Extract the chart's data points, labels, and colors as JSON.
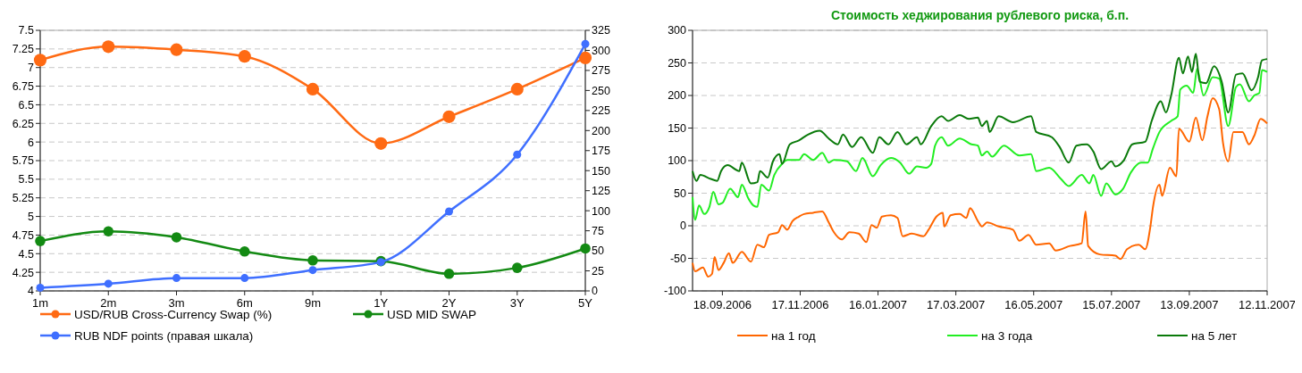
{
  "chart_data": [
    {
      "type": "line",
      "categories": [
        "1m",
        "2m",
        "3m",
        "6m",
        "9m",
        "1Y",
        "2Y",
        "3Y",
        "5Y"
      ],
      "series": [
        {
          "name": "USD/RUB Cross-Currency Swap (%)",
          "color": "#ff6a13",
          "values": [
            7.1,
            7.28,
            7.24,
            7.15,
            6.71,
            5.98,
            6.34,
            6.71,
            7.13
          ]
        },
        {
          "name": "USD MID SWAP",
          "color": "#138a13",
          "values": [
            4.67,
            4.8,
            4.72,
            4.53,
            4.41,
            4.4,
            4.23,
            4.31,
            4.57
          ]
        },
        {
          "name": "RUB NDF points (правая шкала)",
          "color": "#3f6fff",
          "axis": "y2",
          "values": [
            4,
            9,
            16,
            16,
            26,
            36,
            99,
            170,
            308
          ]
        }
      ],
      "ylim": [
        4,
        7.5
      ],
      "yticks": [
        4,
        4.25,
        4.5,
        4.75,
        5,
        5.25,
        5.5,
        5.75,
        6,
        6.25,
        6.5,
        6.75,
        7,
        7.25,
        7.5
      ],
      "y2lim": [
        0,
        325
      ],
      "y2ticks": [
        0,
        25,
        50,
        75,
        100,
        125,
        150,
        175,
        200,
        225,
        250,
        275,
        300,
        325
      ],
      "grid": "y",
      "legend": "bottom",
      "marker": "circle",
      "line_style": "solid"
    },
    {
      "type": "line",
      "title": "Стоимость хеджирования рублевого риска, б.п.",
      "series": [
        {
          "name": "на 1 год",
          "color": "#ff6600",
          "x": [
            "2006-08-26",
            "2006-08-28",
            "2006-09-03",
            "2006-09-07",
            "2006-09-10",
            "2006-09-12",
            "2006-09-15",
            "2006-09-19",
            "2006-09-23",
            "2006-09-26",
            "2006-10-03",
            "2006-10-10",
            "2006-10-15",
            "2006-10-20",
            "2006-10-24",
            "2006-10-31",
            "2006-11-03",
            "2006-11-07",
            "2006-11-11",
            "2006-11-16",
            "2006-11-20",
            "2006-11-27",
            "2006-12-04",
            "2006-12-09",
            "2006-12-13",
            "2006-12-19",
            "2006-12-25",
            "2007-01-01",
            "2007-01-07",
            "2007-01-11",
            "2007-01-15",
            "2007-01-19",
            "2007-01-26",
            "2007-01-31",
            "2007-02-04",
            "2007-02-11",
            "2007-02-20",
            "2007-02-24",
            "2007-03-02",
            "2007-03-07",
            "2007-03-08",
            "2007-03-13",
            "2007-03-20",
            "2007-03-25",
            "2007-03-28",
            "2007-04-03",
            "2007-04-06",
            "2007-04-10",
            "2007-04-19",
            "2007-04-30",
            "2007-05-05",
            "2007-05-12",
            "2007-05-18",
            "2007-05-28",
            "2007-06-02",
            "2007-06-13",
            "2007-06-22",
            "2007-06-25",
            "2007-06-27",
            "2007-07-06",
            "2007-07-18",
            "2007-07-22",
            "2007-07-27",
            "2007-08-05",
            "2007-08-10",
            "2007-08-14",
            "2007-08-16",
            "2007-08-21",
            "2007-08-23",
            "2007-08-29",
            "2007-09-03",
            "2007-09-05",
            "2007-09-13",
            "2007-09-18",
            "2007-09-23",
            "2007-09-27",
            "2007-10-01",
            "2007-10-06",
            "2007-10-09",
            "2007-10-13",
            "2007-10-17",
            "2007-10-24",
            "2007-10-29",
            "2007-11-02",
            "2007-11-07",
            "2007-11-12"
          ],
          "values": [
            -57,
            -70,
            -64,
            -78,
            -74,
            -48,
            -68,
            -57,
            -42,
            -57,
            -40,
            -55,
            -29,
            -33,
            -14,
            -10,
            1,
            -6,
            7,
            14,
            18,
            20,
            22,
            5,
            -10,
            -21,
            -10,
            -12,
            -25,
            1,
            -3,
            14,
            16,
            12,
            -16,
            -12,
            -16,
            -6,
            14,
            20,
            -1,
            16,
            18,
            12,
            27,
            7,
            -1,
            5,
            -1,
            -6,
            -23,
            -14,
            -29,
            -27,
            -38,
            -31,
            -27,
            22,
            -31,
            -44,
            -46,
            -51,
            -36,
            -29,
            -36,
            -1,
            29,
            63,
            46,
            89,
            76,
            149,
            129,
            166,
            131,
            168,
            196,
            179,
            127,
            99,
            144,
            144,
            125,
            138,
            164,
            157
          ]
        },
        {
          "name": "на 3 года",
          "color": "#22ee22",
          "x": [
            "2006-08-26",
            "2006-08-28",
            "2006-08-31",
            "2006-09-04",
            "2006-09-08",
            "2006-09-11",
            "2006-09-15",
            "2006-09-18",
            "2006-09-24",
            "2006-09-30",
            "2006-10-03",
            "2006-10-08",
            "2006-10-12",
            "2006-10-15",
            "2006-10-18",
            "2006-10-24",
            "2006-10-28",
            "2006-11-03",
            "2006-11-07",
            "2006-11-11",
            "2006-11-16",
            "2006-11-20",
            "2006-11-27",
            "2006-12-04",
            "2006-12-09",
            "2006-12-13",
            "2006-12-23",
            "2006-12-30",
            "2007-01-04",
            "2007-01-12",
            "2007-01-18",
            "2007-01-26",
            "2007-02-02",
            "2007-02-09",
            "2007-02-15",
            "2007-02-22",
            "2007-02-26",
            "2007-03-01",
            "2007-03-06",
            "2007-03-11",
            "2007-03-20",
            "2007-03-29",
            "2007-04-03",
            "2007-04-06",
            "2007-04-10",
            "2007-04-14",
            "2007-04-23",
            "2007-05-05",
            "2007-05-14",
            "2007-05-18",
            "2007-05-28",
            "2007-06-06",
            "2007-06-12",
            "2007-06-22",
            "2007-06-28",
            "2007-07-01",
            "2007-07-07",
            "2007-07-11",
            "2007-07-18",
            "2007-07-24",
            "2007-07-30",
            "2007-08-07",
            "2007-08-12",
            "2007-08-16",
            "2007-08-21",
            "2007-08-30",
            "2007-09-04",
            "2007-09-06",
            "2007-09-11",
            "2007-09-16",
            "2007-09-19",
            "2007-09-24",
            "2007-10-01",
            "2007-10-06",
            "2007-10-13",
            "2007-10-19",
            "2007-10-22",
            "2007-10-29",
            "2007-11-02",
            "2007-11-06",
            "2007-11-08",
            "2007-11-12"
          ],
          "values": [
            44,
            9,
            31,
            18,
            29,
            52,
            33,
            35,
            57,
            44,
            63,
            42,
            31,
            29,
            63,
            54,
            78,
            95,
            101,
            101,
            101,
            110,
            101,
            112,
            97,
            101,
            99,
            84,
            104,
            76,
            93,
            104,
            97,
            80,
            91,
            89,
            95,
            123,
            136,
            123,
            134,
            125,
            123,
            108,
            114,
            106,
            123,
            108,
            110,
            84,
            89,
            72,
            61,
            78,
            65,
            78,
            46,
            65,
            48,
            57,
            82,
            97,
            97,
            119,
            144,
            161,
            168,
            209,
            215,
            204,
            241,
            200,
            228,
            226,
            153,
            213,
            217,
            191,
            200,
            204,
            239,
            236
          ]
        },
        {
          "name": "на 5 лет",
          "color": "#0a7a0a",
          "x": [
            "2006-08-26",
            "2006-08-29",
            "2006-09-01",
            "2006-09-09",
            "2006-09-14",
            "2006-09-17",
            "2006-09-22",
            "2006-10-01",
            "2006-10-03",
            "2006-10-10",
            "2006-10-15",
            "2006-10-17",
            "2006-10-23",
            "2006-10-27",
            "2006-11-01",
            "2006-11-03",
            "2006-11-09",
            "2006-11-16",
            "2006-11-23",
            "2006-12-02",
            "2006-12-09",
            "2006-12-16",
            "2006-12-20",
            "2006-12-27",
            "2007-01-03",
            "2007-01-12",
            "2007-01-17",
            "2007-01-24",
            "2007-01-31",
            "2007-02-07",
            "2007-02-15",
            "2007-02-18",
            "2007-02-26",
            "2007-03-06",
            "2007-03-11",
            "2007-03-20",
            "2007-03-27",
            "2007-04-03",
            "2007-04-06",
            "2007-04-10",
            "2007-04-12",
            "2007-04-19",
            "2007-04-30",
            "2007-05-14",
            "2007-05-18",
            "2007-05-30",
            "2007-06-05",
            "2007-06-12",
            "2007-06-18",
            "2007-06-26",
            "2007-07-01",
            "2007-07-07",
            "2007-07-15",
            "2007-07-18",
            "2007-07-24",
            "2007-07-31",
            "2007-08-10",
            "2007-08-15",
            "2007-08-22",
            "2007-08-26",
            "2007-08-30",
            "2007-09-05",
            "2007-09-08",
            "2007-09-12",
            "2007-09-15",
            "2007-09-18",
            "2007-09-21",
            "2007-09-26",
            "2007-10-02",
            "2007-10-08",
            "2007-10-13",
            "2007-10-19",
            "2007-10-24",
            "2007-10-31",
            "2007-11-05",
            "2007-11-08",
            "2007-11-12"
          ],
          "values": [
            84,
            69,
            78,
            72,
            69,
            84,
            93,
            84,
            97,
            65,
            67,
            84,
            74,
            99,
            110,
            95,
            125,
            131,
            140,
            146,
            134,
            125,
            140,
            121,
            136,
            112,
            136,
            125,
            144,
            125,
            136,
            125,
            153,
            168,
            161,
            170,
            164,
            166,
            153,
            161,
            144,
            168,
            159,
            168,
            144,
            136,
            121,
            97,
            123,
            125,
            114,
            87,
            99,
            91,
            99,
            125,
            129,
            161,
            191,
            174,
            200,
            258,
            234,
            260,
            236,
            264,
            221,
            219,
            245,
            221,
            174,
            232,
            234,
            208,
            228,
            254,
            256
          ]
        }
      ],
      "xlim": [
        "2006-08-26",
        "2007-11-12"
      ],
      "xticks": [
        {
          "value": "2006-09-18",
          "label": "18.09.2006"
        },
        {
          "value": "2006-11-17",
          "label": "17.11.2006"
        },
        {
          "value": "2007-01-16",
          "label": "16.01.2007"
        },
        {
          "value": "2007-03-17",
          "label": "17.03.2007"
        },
        {
          "value": "2007-05-16",
          "label": "16.05.2007"
        },
        {
          "value": "2007-07-15",
          "label": "15.07.2007"
        },
        {
          "value": "2007-09-13",
          "label": "13.09.2007"
        },
        {
          "value": "2007-11-12",
          "label": "12.11.2007"
        }
      ],
      "ylim": [
        -100,
        300
      ],
      "yticks": [
        -100,
        -50,
        0,
        50,
        100,
        150,
        200,
        250,
        300
      ],
      "grid": "y",
      "legend": "bottom",
      "line_style": "solid"
    }
  ]
}
